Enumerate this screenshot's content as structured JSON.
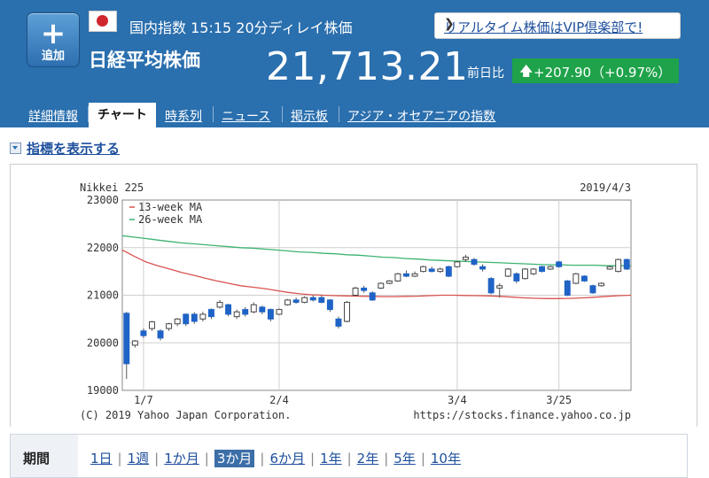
{
  "header": {
    "add_label": "追加",
    "category_line": "国内指数 15:15 20分ディレイ株価",
    "name": "日経平均株価",
    "price": "21,713.21",
    "prev_label": "前日比",
    "change": "+207.90（+0.97%）",
    "vip_link": "リアルタイム株価はVIP倶楽部で!",
    "colors": {
      "header_bg": "#2a6fae",
      "up": "#1ea34a"
    }
  },
  "tabs": [
    {
      "label": "詳細情報",
      "selected": false
    },
    {
      "label": "チャート",
      "selected": true
    },
    {
      "label": "時系列",
      "selected": false
    },
    {
      "label": "ニュース",
      "selected": false
    },
    {
      "label": "掲示板",
      "selected": false
    },
    {
      "label": "アジア・オセアニアの指数",
      "selected": false
    }
  ],
  "indicator_toggle": "指標を表示する",
  "chart_data": {
    "type": "candlestick",
    "title": "Nikkei 225",
    "date": "2019/4/3",
    "ylim": [
      19000,
      23000
    ],
    "y_ticks": [
      "19000",
      "20000",
      "21000",
      "22000",
      "23000"
    ],
    "x_ticks": [
      "1/7",
      "2/4",
      "3/4",
      "3/25"
    ],
    "legend": [
      {
        "name": "13-week MA",
        "color": "#d9534f"
      },
      {
        "name": "26-week MA",
        "color": "#3cb371"
      }
    ],
    "copyright": "(C) 2019 Yahoo Japan Corporation.",
    "source": "https://stocks.finance.yahoo.co.jp",
    "candles": [
      {
        "o": 20620,
        "c": 19560,
        "h": 20650,
        "l": 19240
      },
      {
        "o": 19950,
        "c": 20040,
        "h": 20060,
        "l": 19900
      },
      {
        "o": 20250,
        "c": 20150,
        "h": 20300,
        "l": 20100
      },
      {
        "o": 20300,
        "c": 20440,
        "h": 20460,
        "l": 20250
      },
      {
        "o": 20250,
        "c": 20100,
        "h": 20280,
        "l": 20050
      },
      {
        "o": 20300,
        "c": 20400,
        "h": 20420,
        "l": 20250
      },
      {
        "o": 20400,
        "c": 20500,
        "h": 20520,
        "l": 20350
      },
      {
        "o": 20600,
        "c": 20400,
        "h": 20620,
        "l": 20350
      },
      {
        "o": 20600,
        "c": 20450,
        "h": 20640,
        "l": 20400
      },
      {
        "o": 20500,
        "c": 20600,
        "h": 20650,
        "l": 20450
      },
      {
        "o": 20700,
        "c": 20550,
        "h": 20720,
        "l": 20500
      },
      {
        "o": 20750,
        "c": 20850,
        "h": 20900,
        "l": 20720
      },
      {
        "o": 20800,
        "c": 20600,
        "h": 20820,
        "l": 20560
      },
      {
        "o": 20550,
        "c": 20650,
        "h": 20700,
        "l": 20500
      },
      {
        "o": 20700,
        "c": 20600,
        "h": 20750,
        "l": 20550
      },
      {
        "o": 20650,
        "c": 20800,
        "h": 20850,
        "l": 20620
      },
      {
        "o": 20750,
        "c": 20650,
        "h": 20780,
        "l": 20600
      },
      {
        "o": 20700,
        "c": 20500,
        "h": 20720,
        "l": 20450
      },
      {
        "o": 20600,
        "c": 20700,
        "h": 20720,
        "l": 20580
      },
      {
        "o": 20800,
        "c": 20900,
        "h": 20920,
        "l": 20780
      },
      {
        "o": 20900,
        "c": 20850,
        "h": 20950,
        "l": 20820
      },
      {
        "o": 20850,
        "c": 20950,
        "h": 20980,
        "l": 20830
      },
      {
        "o": 20950,
        "c": 20900,
        "h": 21000,
        "l": 20870
      },
      {
        "o": 20950,
        "c": 20850,
        "h": 21000,
        "l": 20830
      },
      {
        "o": 20900,
        "c": 20700,
        "h": 20920,
        "l": 20650
      },
      {
        "o": 20500,
        "c": 20350,
        "h": 20550,
        "l": 20300
      },
      {
        "o": 20450,
        "c": 20850,
        "h": 20880,
        "l": 20430
      },
      {
        "o": 21000,
        "c": 21150,
        "h": 21180,
        "l": 20980
      },
      {
        "o": 21150,
        "c": 21100,
        "h": 21200,
        "l": 21050
      },
      {
        "o": 21050,
        "c": 20900,
        "h": 21080,
        "l": 20880
      },
      {
        "o": 21150,
        "c": 21250,
        "h": 21270,
        "l": 21130
      },
      {
        "o": 21250,
        "c": 21300,
        "h": 21320,
        "l": 21230
      },
      {
        "o": 21300,
        "c": 21450,
        "h": 21470,
        "l": 21280
      },
      {
        "o": 21450,
        "c": 21400,
        "h": 21520,
        "l": 21380
      },
      {
        "o": 21400,
        "c": 21450,
        "h": 21500,
        "l": 21380
      },
      {
        "o": 21500,
        "c": 21600,
        "h": 21620,
        "l": 21480
      },
      {
        "o": 21550,
        "c": 21500,
        "h": 21600,
        "l": 21480
      },
      {
        "o": 21500,
        "c": 21550,
        "h": 21580,
        "l": 21470
      },
      {
        "o": 21600,
        "c": 21400,
        "h": 21620,
        "l": 21380
      },
      {
        "o": 21600,
        "c": 21700,
        "h": 21720,
        "l": 21580
      },
      {
        "o": 21750,
        "c": 21800,
        "h": 21850,
        "l": 21700
      },
      {
        "o": 21750,
        "c": 21650,
        "h": 21780,
        "l": 21620
      },
      {
        "o": 21600,
        "c": 21550,
        "h": 21650,
        "l": 21500
      },
      {
        "o": 21350,
        "c": 21050,
        "h": 21380,
        "l": 21020
      },
      {
        "o": 21150,
        "c": 21200,
        "h": 21250,
        "l": 20950
      },
      {
        "o": 21400,
        "c": 21550,
        "h": 21570,
        "l": 21380
      },
      {
        "o": 21450,
        "c": 21300,
        "h": 21480,
        "l": 21250
      },
      {
        "o": 21350,
        "c": 21550,
        "h": 21570,
        "l": 21330
      },
      {
        "o": 21450,
        "c": 21550,
        "h": 21570,
        "l": 21420
      },
      {
        "o": 21600,
        "c": 21500,
        "h": 21620,
        "l": 21480
      },
      {
        "o": 21550,
        "c": 21600,
        "h": 21620,
        "l": 21530
      },
      {
        "o": 21700,
        "c": 21600,
        "h": 21720,
        "l": 21580
      },
      {
        "o": 21300,
        "c": 21000,
        "h": 21320,
        "l": 20980
      },
      {
        "o": 21250,
        "c": 21450,
        "h": 21470,
        "l": 21230
      },
      {
        "o": 21400,
        "c": 21300,
        "h": 21420,
        "l": 21280
      },
      {
        "o": 21200,
        "c": 21050,
        "h": 21220,
        "l": 21030
      },
      {
        "o": 21200,
        "c": 21250,
        "h": 21270,
        "l": 21180
      },
      {
        "o": 21550,
        "c": 21600,
        "h": 21620,
        "l": 21530
      },
      {
        "o": 21500,
        "c": 21750,
        "h": 21770,
        "l": 21480
      },
      {
        "o": 21750,
        "c": 21550,
        "h": 21770,
        "l": 21530
      }
    ],
    "x_tick_index": [
      2,
      18,
      39,
      51
    ],
    "ma13": [
      21950,
      21820,
      21700,
      21620,
      21550,
      21480,
      21420,
      21360,
      21300,
      21250,
      21200,
      21170,
      21140,
      21100,
      21060,
      21030,
      21010,
      21000,
      20990,
      20985,
      20980,
      20975,
      20970,
      20970,
      20975,
      20980,
      20990,
      21000,
      21000,
      20995,
      20990,
      20985,
      20975,
      20960,
      20945,
      20935,
      20930,
      20930,
      20935,
      20945,
      20960,
      20975,
      20990,
      21000
    ],
    "ma26": [
      22250,
      22220,
      22190,
      22160,
      22130,
      22100,
      22080,
      22060,
      22040,
      22020,
      22000,
      21990,
      21970,
      21950,
      21930,
      21910,
      21900,
      21880,
      21870,
      21850,
      21840,
      21820,
      21800,
      21790,
      21770,
      21760,
      21740,
      21730,
      21720,
      21710,
      21700,
      21690,
      21680,
      21670,
      21660,
      21650,
      21640,
      21640,
      21630,
      21630,
      21630,
      21620,
      21620,
      21620
    ]
  },
  "period": {
    "label": "期間",
    "options": [
      {
        "label": "1日",
        "selected": false
      },
      {
        "label": "1週",
        "selected": false
      },
      {
        "label": "1か月",
        "selected": false
      },
      {
        "label": "3か月",
        "selected": true
      },
      {
        "label": "6か月",
        "selected": false
      },
      {
        "label": "1年",
        "selected": false
      },
      {
        "label": "2年",
        "selected": false
      },
      {
        "label": "5年",
        "selected": false
      },
      {
        "label": "10年",
        "selected": false
      }
    ]
  }
}
